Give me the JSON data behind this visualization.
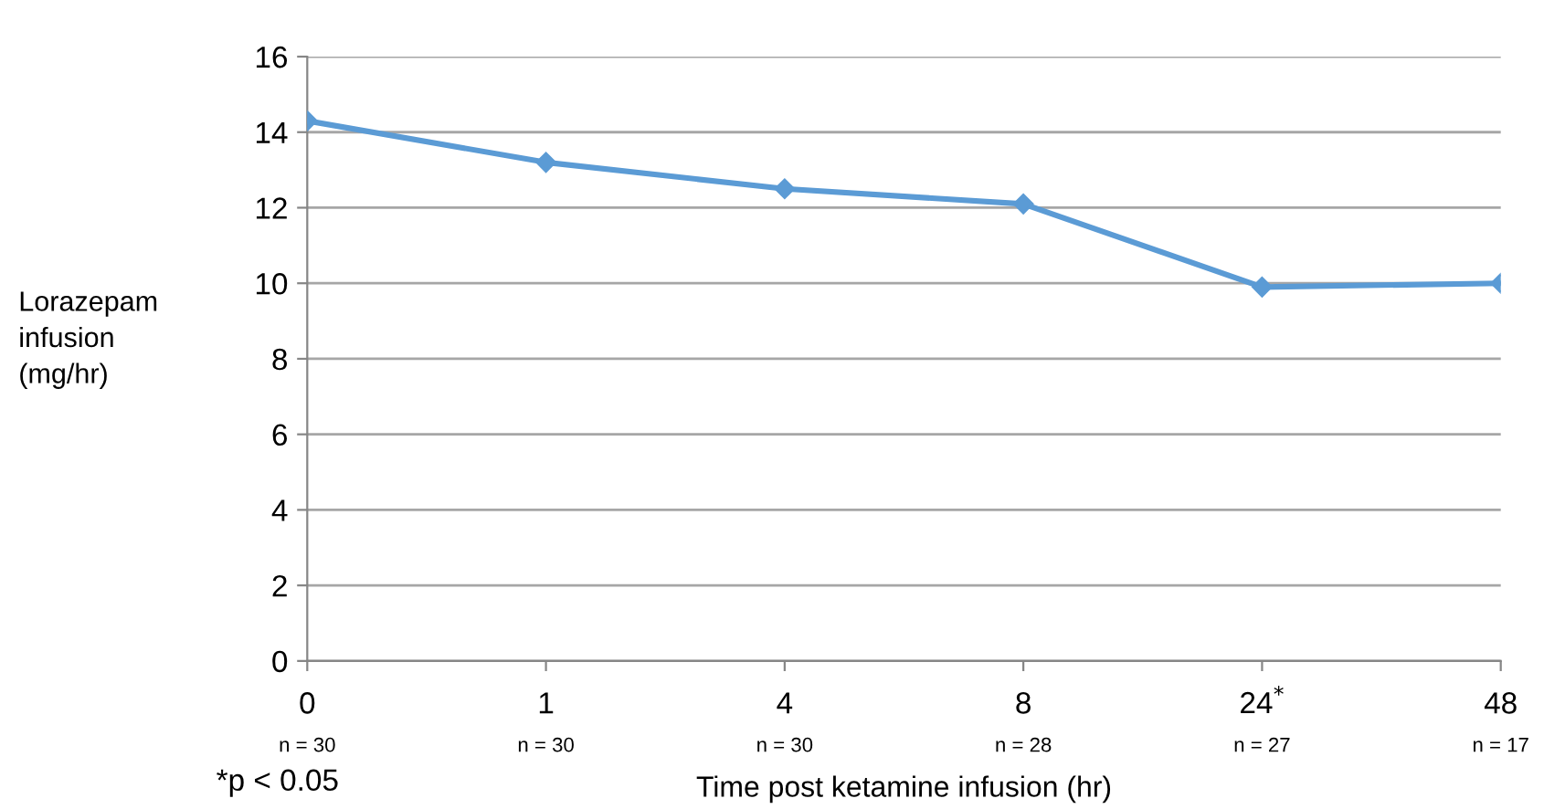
{
  "chart_data": {
    "type": "line",
    "ylabel": "Lorazepam\ninfusion\n(mg/hr)",
    "xlabel": "Time post ketamine infusion (hr)",
    "categories": [
      "0",
      "1",
      "4",
      "8",
      "24$^{*}$",
      "48"
    ],
    "series": [
      {
        "color": "#5b9bd5",
        "values": [
          14.3,
          13.2,
          12.5,
          12.1,
          9.9,
          10.0
        ]
      }
    ],
    "ylim": [
      0,
      16
    ],
    "yticks": [
      0,
      2,
      4,
      6,
      8,
      10,
      12,
      14,
      16
    ],
    "grid": "y",
    "marker": "diamond",
    "line_style": "solid",
    "legend": false,
    "annotations": [
      "n = 30",
      "n = 30",
      "n = 30",
      "n = 28",
      "n = 27",
      "n = 17",
      "*p < 0.05"
    ]
  }
}
